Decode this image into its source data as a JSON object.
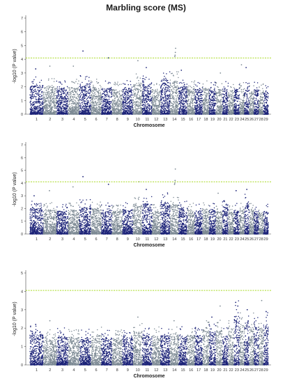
{
  "title": "Marbling score (MS)",
  "colors": {
    "odd": "#1c2378",
    "even": "#7d8a94",
    "threshold": "#9bd400",
    "axis": "#444444"
  },
  "chart_data": [
    {
      "type": "scatter",
      "title": "Marbling score (MS)",
      "xlabel": "Chromosome",
      "ylabel": "-log10 (P value)",
      "ylim": [
        0,
        7
      ],
      "yticks": [
        "0",
        "1",
        "2",
        "3",
        "4",
        "5",
        "6",
        "7"
      ],
      "categories": [
        "1",
        "2",
        "3",
        "4",
        "5",
        "6",
        "7",
        "8",
        "9",
        "10",
        "11",
        "12",
        "13",
        "14",
        "15",
        "16",
        "17",
        "18",
        "19",
        "20",
        "21",
        "22",
        "23",
        "24",
        "25",
        "26",
        "27",
        "28",
        "29"
      ],
      "threshold": 4.1,
      "background_max": [
        2.1,
        2.0,
        1.9,
        2.0,
        2.2,
        2.0,
        1.9,
        1.8,
        1.9,
        2.3,
        2.2,
        1.8,
        2.6,
        2.4,
        2.0,
        1.9,
        1.8,
        1.9,
        1.8,
        1.8,
        1.9,
        1.7,
        1.9,
        1.8,
        1.8,
        1.7,
        1.8,
        1.7,
        1.7
      ],
      "top_points": [
        {
          "chromosome": "5",
          "value": 4.6
        },
        {
          "chromosome": "7",
          "value": 4.1
        },
        {
          "chromosome": "14",
          "value": 4.8
        },
        {
          "chromosome": "14",
          "value": 4.5
        },
        {
          "chromosome": "14",
          "value": 4.3
        },
        {
          "chromosome": "14",
          "value": 4.2
        },
        {
          "chromosome": "10",
          "value": 3.9
        },
        {
          "chromosome": "2",
          "value": 3.5
        },
        {
          "chromosome": "4",
          "value": 3.5
        },
        {
          "chromosome": "1",
          "value": 3.3
        },
        {
          "chromosome": "11",
          "value": 3.4
        },
        {
          "chromosome": "24",
          "value": 3.6
        },
        {
          "chromosome": "25",
          "value": 3.4
        },
        {
          "chromosome": "15",
          "value": 3.2
        },
        {
          "chromosome": "20",
          "value": 3.0
        }
      ]
    },
    {
      "type": "scatter",
      "title": "",
      "xlabel": "Chromosome",
      "ylabel": "-log10 (P value)",
      "ylim": [
        0,
        7
      ],
      "yticks": [
        "0",
        "1",
        "2",
        "3",
        "4",
        "5",
        "6",
        "7"
      ],
      "categories": [
        "1",
        "2",
        "3",
        "4",
        "5",
        "6",
        "7",
        "8",
        "9",
        "10",
        "11",
        "12",
        "13",
        "14",
        "15",
        "16",
        "17",
        "18",
        "19",
        "20",
        "21",
        "22",
        "23",
        "24",
        "25",
        "26",
        "27",
        "28",
        "29"
      ],
      "threshold": 4.1,
      "background_max": [
        2.0,
        1.9,
        1.8,
        1.9,
        2.1,
        2.0,
        1.9,
        1.8,
        1.9,
        2.3,
        2.4,
        1.8,
        2.5,
        2.3,
        2.0,
        1.9,
        1.8,
        2.0,
        1.9,
        1.8,
        2.1,
        1.7,
        1.9,
        2.0,
        2.4,
        1.9,
        1.8,
        1.7,
        1.8
      ],
      "top_points": [
        {
          "chromosome": "5",
          "value": 4.5
        },
        {
          "chromosome": "7",
          "value": 3.9
        },
        {
          "chromosome": "10",
          "value": 4.1
        },
        {
          "chromosome": "14",
          "value": 5.1
        },
        {
          "chromosome": "14",
          "value": 4.2
        },
        {
          "chromosome": "14",
          "value": 4.0
        },
        {
          "chromosome": "14",
          "value": 3.9
        },
        {
          "chromosome": "25",
          "value": 3.5
        },
        {
          "chromosome": "2",
          "value": 3.4
        },
        {
          "chromosome": "4",
          "value": 3.7
        },
        {
          "chromosome": "11",
          "value": 3.5
        },
        {
          "chromosome": "23",
          "value": 3.4
        },
        {
          "chromosome": "20",
          "value": 3.2
        },
        {
          "chromosome": "1",
          "value": 3.0
        }
      ]
    },
    {
      "type": "scatter",
      "title": "",
      "xlabel": "Chromosome",
      "ylabel": "-log10 (P value)",
      "ylim": [
        0,
        5
      ],
      "yticks": [
        "0",
        "1",
        "2",
        "3",
        "4",
        "5"
      ],
      "categories": [
        "1",
        "2",
        "3",
        "4",
        "5",
        "6",
        "7",
        "8",
        "9",
        "10",
        "11",
        "12",
        "13",
        "14",
        "15",
        "16",
        "17",
        "18",
        "19",
        "20",
        "21",
        "22",
        "23",
        "24",
        "25",
        "26",
        "27",
        "28",
        "29"
      ],
      "threshold": 4.05,
      "background_max": [
        1.7,
        1.5,
        1.6,
        1.5,
        1.5,
        1.6,
        1.5,
        1.5,
        1.5,
        1.8,
        1.6,
        1.6,
        1.6,
        1.7,
        1.6,
        1.6,
        1.6,
        1.9,
        1.8,
        1.9,
        1.6,
        2.0,
        2.7,
        2.2,
        2.4,
        2.2,
        2.1,
        2.0,
        2.2
      ],
      "top_points": [
        {
          "chromosome": "23",
          "value": 3.4
        },
        {
          "chromosome": "23",
          "value": 3.2
        },
        {
          "chromosome": "20",
          "value": 3.2
        },
        {
          "chromosome": "28",
          "value": 3.5
        },
        {
          "chromosome": "25",
          "value": 3.0
        },
        {
          "chromosome": "29",
          "value": 2.9
        },
        {
          "chromosome": "10",
          "value": 2.6
        },
        {
          "chromosome": "2",
          "value": 2.4
        },
        {
          "chromosome": "14",
          "value": 2.4
        },
        {
          "chromosome": "1",
          "value": 2.2
        },
        {
          "chromosome": "19",
          "value": 2.6
        },
        {
          "chromosome": "24",
          "value": 2.5
        }
      ]
    }
  ]
}
